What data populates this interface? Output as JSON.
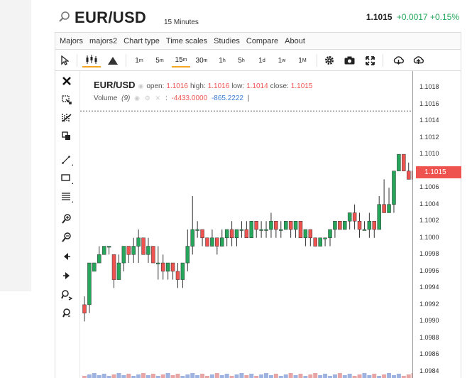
{
  "header": {
    "symbol": "EUR/USD",
    "interval": "15 Minutes",
    "price": "1.1015",
    "change": "+0.0017",
    "change_pct": "+0.15%"
  },
  "menu": [
    "Majors",
    "majors2",
    "Chart type",
    "Time scales",
    "Studies",
    "Compare",
    "About"
  ],
  "toolbar": {
    "periods": [
      {
        "main": "1",
        "sup": "m"
      },
      {
        "main": "5",
        "sup": "m"
      },
      {
        "main": "15",
        "sup": "m"
      },
      {
        "main": "30",
        "sup": "m"
      },
      {
        "main": "1",
        "sup": "h"
      },
      {
        "main": "5",
        "sup": "h"
      },
      {
        "main": "1",
        "sup": "d"
      },
      {
        "main": "1",
        "sup": "w"
      },
      {
        "main": "1",
        "sup": "M"
      }
    ],
    "active_period": "15m",
    "icons": [
      "cursor-icon",
      "candles-icon",
      "mountain-icon",
      "gear-icon",
      "camera-icon",
      "fullscreen-icon",
      "download-icon",
      "upload-icon"
    ]
  },
  "drawing_tools": [
    "close-icon",
    "crosshair-icon",
    "fibonacci-icon",
    "clone-icon",
    "trendline-icon",
    "rectangle-icon",
    "lines-icon",
    "zoom-in-icon",
    "zoom-out-icon",
    "scroll-left-icon",
    "scroll-right-icon",
    "zoom-fit-icon",
    "reset-zoom-icon"
  ],
  "legend": {
    "symbol": "EUR/USD",
    "open_label": "open:",
    "open": "1.1016",
    "high_label": "high:",
    "high": "1.1016",
    "low_label": "low:",
    "low": "1.1014",
    "close_label": "close:",
    "close": "1.1015",
    "volume_label": "Volume",
    "volume_param": "(9)",
    "vol1": "-4433.0000",
    "vol2": "-865.2222",
    "vol_sep": "|"
  },
  "price_tag": "1.1015",
  "colors": {
    "up": "#26a65b",
    "down": "#ef5350",
    "accent": "#f5a623",
    "change": "#22a85a"
  },
  "chart_data": {
    "type": "candlestick",
    "ylim": [
      1.0984,
      1.102
    ],
    "y_ticks": [
      "1.1018",
      "1.1016",
      "1.1014",
      "1.1012",
      "1.1010",
      "1.1008",
      "1.1006",
      "1.1004",
      "1.1002",
      "1.1000",
      "1.0998",
      "1.0996",
      "1.0994",
      "1.0992",
      "1.0990",
      "1.0988",
      "1.0986",
      "1.0984"
    ],
    "last_price": 1.1015,
    "candles": [
      [
        1.0992,
        1.0991,
        1.099,
        1.0993
      ],
      [
        1.0992,
        1.0997,
        1.0991,
        1.0997
      ],
      [
        1.0996,
        1.0997,
        1.0996,
        1.0997
      ],
      [
        1.0997,
        1.0998,
        1.0997,
        1.0999
      ],
      [
        1.0998,
        1.0999,
        1.0998,
        1.0999
      ],
      [
        1.0999,
        1.0999,
        1.0998,
        1.0999
      ],
      [
        1.0998,
        1.0995,
        1.0994,
        1.0998
      ],
      [
        1.0995,
        1.0997,
        1.0995,
        1.0998
      ],
      [
        1.0997,
        1.0999,
        1.0996,
        1.0999
      ],
      [
        1.0999,
        1.0998,
        1.0997,
        1.0999
      ],
      [
        1.0998,
        1.0999,
        1.0997,
        1.1
      ],
      [
        1.0999,
        1.1,
        1.0997,
        1.1001
      ],
      [
        1.1,
        1.0998,
        1.0998,
        1.1
      ],
      [
        1.0998,
        1.0999,
        1.0997,
        1.1
      ],
      [
        1.0999,
        1.0997,
        1.0997,
        1.0999
      ],
      [
        1.0997,
        1.0997,
        1.0995,
        1.0999
      ],
      [
        1.0997,
        1.0996,
        1.0995,
        1.0998
      ],
      [
        1.0996,
        1.0997,
        1.0995,
        1.0997
      ],
      [
        1.0997,
        1.0996,
        1.0995,
        1.0997
      ],
      [
        1.0996,
        1.0995,
        1.0994,
        1.0997
      ],
      [
        1.0995,
        1.0997,
        1.0994,
        1.0997
      ],
      [
        1.0997,
        1.0999,
        1.0996,
        1.1001
      ],
      [
        1.0999,
        1.1001,
        1.0998,
        1.1005
      ],
      [
        1.1001,
        1.1001,
        1.1,
        1.1002
      ],
      [
        1.1001,
        1.1,
        1.0999,
        1.1001
      ],
      [
        1.1,
        1.0999,
        1.0999,
        1.1
      ],
      [
        1.0999,
        1.1,
        1.0999,
        1.1001
      ],
      [
        1.1,
        1.0999,
        1.0998,
        1.1
      ],
      [
        1.0999,
        1.1,
        1.0999,
        1.1001
      ],
      [
        1.1,
        1.1001,
        1.0999,
        1.1001
      ],
      [
        1.1001,
        1.1,
        1.0999,
        1.1002
      ],
      [
        1.1,
        1.1001,
        1.0999,
        1.1001
      ],
      [
        1.1001,
        1.1001,
        1.1,
        1.1002
      ],
      [
        1.1001,
        1.1,
        1.1,
        1.1002
      ],
      [
        1.1,
        1.1002,
        1.1,
        1.1002
      ],
      [
        1.1002,
        1.1001,
        1.1,
        1.1002
      ],
      [
        1.1001,
        1.1001,
        1.1,
        1.1002
      ],
      [
        1.1001,
        1.1001,
        1.1,
        1.1002
      ],
      [
        1.1001,
        1.1002,
        1.1,
        1.1003
      ],
      [
        1.1002,
        1.1001,
        1.1,
        1.1002
      ],
      [
        1.1001,
        1.1001,
        1.1,
        1.1002
      ],
      [
        1.1001,
        1.1002,
        1.1001,
        1.1002
      ],
      [
        1.1002,
        1.1001,
        1.1,
        1.1002
      ],
      [
        1.1001,
        1.1002,
        1.1,
        1.1002
      ],
      [
        1.1002,
        1.1,
        1.1,
        1.1002
      ],
      [
        1.1,
        1.1001,
        1.0999,
        1.1001
      ],
      [
        1.1001,
        1.1,
        1.0999,
        1.1001
      ],
      [
        1.1,
        1.0999,
        1.0999,
        1.1
      ],
      [
        1.0999,
        1.1,
        1.0999,
        1.1
      ],
      [
        1.1,
        1.1,
        1.0999,
        1.1
      ],
      [
        1.1,
        1.1001,
        1.0999,
        1.1001
      ],
      [
        1.1001,
        1.1002,
        1.1,
        1.1002
      ],
      [
        1.1002,
        1.1001,
        1.1001,
        1.1002
      ],
      [
        1.1001,
        1.1002,
        1.1001,
        1.1002
      ],
      [
        1.1002,
        1.1003,
        1.1001,
        1.1003
      ],
      [
        1.1003,
        1.1002,
        1.1001,
        1.1004
      ],
      [
        1.1002,
        1.1001,
        1.1,
        1.1003
      ],
      [
        1.1001,
        1.1001,
        1.1001,
        1.1002
      ],
      [
        1.1001,
        1.1002,
        1.1,
        1.1003
      ],
      [
        1.1002,
        1.1001,
        1.1,
        1.1002
      ],
      [
        1.1001,
        1.1004,
        1.1001,
        1.1005
      ],
      [
        1.1004,
        1.1003,
        1.1003,
        1.1007
      ],
      [
        1.1003,
        1.1004,
        1.1003,
        1.1006
      ],
      [
        1.1004,
        1.1008,
        1.1003,
        1.1008
      ],
      [
        1.1008,
        1.101,
        1.1008,
        1.101
      ],
      [
        1.101,
        1.1008,
        1.1008,
        1.101
      ],
      [
        1.1008,
        1.1007,
        1.1007,
        1.1009
      ],
      [
        1.1008,
        1.1007,
        1.1006,
        1.1008
      ]
    ]
  }
}
